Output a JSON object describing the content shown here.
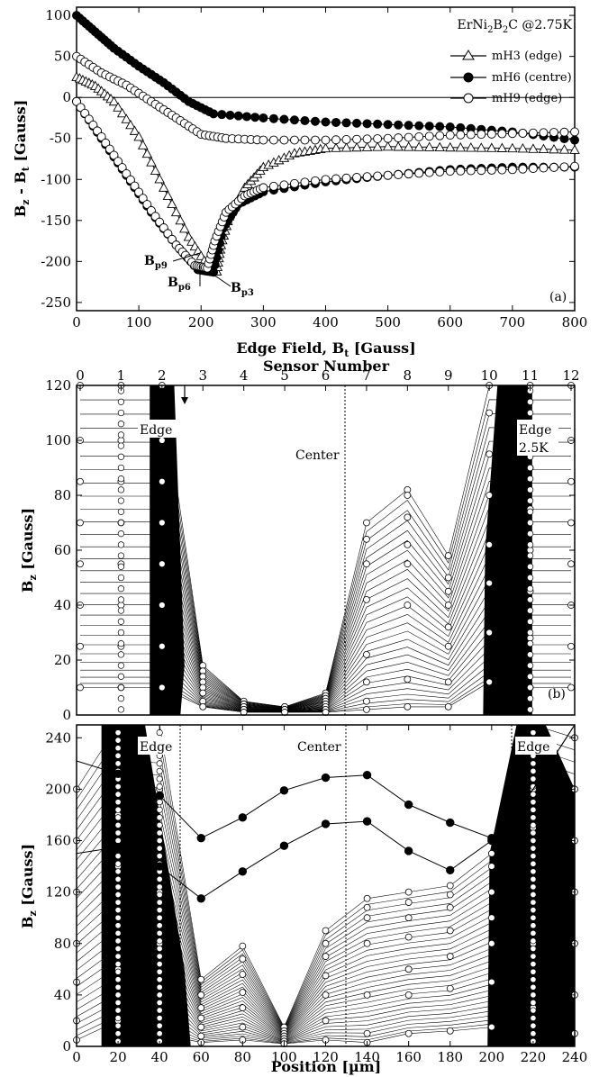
{
  "chart_data": [
    {
      "panel": "(a)",
      "type": "scatter",
      "xlabel": "Edge Field, B_t [Gauss]",
      "ylabel": "B_z - B_t [Gauss]",
      "xlim": [
        0,
        800
      ],
      "ylim": [
        -260,
        110
      ],
      "xticks": [
        0,
        100,
        200,
        300,
        400,
        500,
        600,
        700,
        800
      ],
      "yticks": [
        -250,
        -200,
        -150,
        -100,
        -50,
        0,
        50,
        100
      ],
      "legend_title": "ErNi2B2C @2.75K",
      "legend_placement": "top-right",
      "series": [
        {
          "name": "mH3 (edge)",
          "marker": "triangle",
          "up": [
            [
              0,
              25
            ],
            [
              30,
              14
            ],
            [
              60,
              -5
            ],
            [
              100,
              -48
            ],
            [
              140,
              -110
            ],
            [
              180,
              -170
            ],
            [
              210,
              -205
            ],
            [
              225,
              -212
            ]
          ],
          "down": [
            [
              225,
              -212
            ],
            [
              232,
              -180
            ],
            [
              245,
              -145
            ],
            [
              270,
              -110
            ],
            [
              300,
              -85
            ],
            [
              350,
              -68
            ],
            [
              400,
              -62
            ],
            [
              500,
              -60
            ],
            [
              600,
              -61
            ],
            [
              700,
              -62
            ],
            [
              800,
              -64
            ]
          ]
        },
        {
          "name": "mH6 (centre)",
          "marker": "filled-circle",
          "up": [
            [
              0,
              100
            ],
            [
              30,
              80
            ],
            [
              60,
              60
            ],
            [
              100,
              38
            ],
            [
              140,
              18
            ],
            [
              180,
              -5
            ],
            [
              220,
              -20
            ],
            [
              300,
              -25
            ],
            [
              400,
              -30
            ],
            [
              500,
              -33
            ],
            [
              600,
              -36
            ],
            [
              700,
              -42
            ],
            [
              800,
              -52
            ]
          ],
          "down": [
            [
              0,
              -5
            ],
            [
              40,
              -50
            ],
            [
              80,
              -95
            ],
            [
              120,
              -140
            ],
            [
              160,
              -180
            ],
            [
              195,
              -210
            ],
            [
              220,
              -213
            ],
            [
              235,
              -160
            ],
            [
              260,
              -130
            ],
            [
              300,
              -115
            ],
            [
              400,
              -103
            ],
            [
              500,
              -95
            ],
            [
              600,
              -88
            ],
            [
              700,
              -85
            ],
            [
              800,
              -85
            ]
          ]
        },
        {
          "name": "mH9 (edge)",
          "marker": "open-circle",
          "up": [
            [
              0,
              50
            ],
            [
              40,
              30
            ],
            [
              80,
              15
            ],
            [
              120,
              -5
            ],
            [
              160,
              -25
            ],
            [
              200,
              -45
            ],
            [
              240,
              -50
            ],
            [
              300,
              -52
            ],
            [
              400,
              -52
            ],
            [
              500,
              -50
            ],
            [
              600,
              -46
            ],
            [
              700,
              -44
            ],
            [
              800,
              -42
            ]
          ],
          "down": [
            [
              0,
              -5
            ],
            [
              40,
              -48
            ],
            [
              80,
              -93
            ],
            [
              120,
              -138
            ],
            [
              160,
              -180
            ],
            [
              190,
              -205
            ],
            [
              210,
              -208
            ],
            [
              222,
              -175
            ],
            [
              240,
              -140
            ],
            [
              270,
              -120
            ],
            [
              300,
              -110
            ],
            [
              400,
              -100
            ],
            [
              500,
              -95
            ],
            [
              600,
              -90
            ],
            [
              700,
              -88
            ],
            [
              800,
              -84
            ]
          ]
        }
      ],
      "annotations": {
        "bp9": "Bp9",
        "bp6": "Bp6",
        "bp3": "Bp3"
      }
    },
    {
      "panel": "(b)",
      "type": "line",
      "top_axis_label": "Sensor Number",
      "top_ticks": [
        "0",
        "1",
        "2",
        "3",
        "4",
        "5",
        "6",
        "7",
        "8",
        "9",
        "10",
        "11",
        "12"
      ],
      "ylabel": "B_z [Gauss]",
      "ylim": [
        0,
        120
      ],
      "yticks": [
        0,
        20,
        40,
        60,
        80,
        100,
        120
      ],
      "annotations": {
        "edge_left": "Edge",
        "center": "Center",
        "edge_right": "Edge",
        "temp": "2.5K"
      },
      "profiles": [
        [
          120,
          120,
          120,
          18,
          5,
          3,
          8,
          70,
          82,
          58,
          120,
          120,
          120
        ],
        [
          100,
          100,
          100,
          16,
          4,
          3,
          7,
          64,
          80,
          50,
          110,
          105,
          100
        ],
        [
          85,
          85,
          85,
          14,
          4,
          3,
          6,
          55,
          72,
          45,
          95,
          90,
          85
        ],
        [
          70,
          70,
          70,
          12,
          3,
          2,
          5,
          42,
          62,
          40,
          80,
          75,
          70
        ],
        [
          55,
          55,
          55,
          10,
          3,
          2,
          4,
          22,
          55,
          32,
          62,
          60,
          55
        ],
        [
          40,
          40,
          40,
          8,
          2,
          2,
          3,
          12,
          40,
          25,
          48,
          45,
          40
        ],
        [
          25,
          25,
          25,
          5,
          2,
          2,
          2,
          5,
          13,
          12,
          30,
          28,
          25
        ],
        [
          10,
          10,
          10,
          3,
          1,
          1,
          1,
          2,
          3,
          3,
          12,
          10,
          10
        ]
      ]
    },
    {
      "panel": "(c)",
      "type": "line",
      "xlabel": "Position [µm]",
      "ylabel": "B_z [Gauss]",
      "xlim": [
        0,
        240
      ],
      "ylim": [
        0,
        250
      ],
      "xticks": [
        0,
        20,
        40,
        60,
        80,
        100,
        120,
        140,
        160,
        180,
        200,
        220,
        240
      ],
      "yticks": [
        0,
        40,
        80,
        120,
        160,
        200,
        240
      ],
      "annotations": {
        "edge_left": "Edge",
        "center": "Center",
        "edge_right": "Edge"
      },
      "x": [
        0,
        20,
        40,
        60,
        80,
        100,
        120,
        140,
        160,
        180,
        200,
        220,
        240
      ],
      "filled_profiles": [
        [
          222,
          212,
          195,
          162,
          178,
          199,
          209,
          211,
          188,
          174,
          162,
          200,
          250
        ],
        [
          150,
          155,
          140,
          115,
          136,
          156,
          173,
          175,
          152,
          137,
          160,
          200,
          250
        ]
      ],
      "open_profiles": [
        [
          200,
          250,
          250,
          52,
          78,
          15,
          90,
          115,
          120,
          125,
          150,
          250,
          240
        ],
        [
          160,
          220,
          200,
          40,
          68,
          12,
          80,
          108,
          112,
          118,
          140,
          230,
          200
        ],
        [
          120,
          180,
          160,
          30,
          56,
          10,
          70,
          100,
          100,
          108,
          120,
          200,
          160
        ],
        [
          80,
          140,
          120,
          22,
          42,
          8,
          55,
          80,
          85,
          90,
          100,
          170,
          120
        ],
        [
          50,
          100,
          80,
          15,
          30,
          6,
          40,
          40,
          60,
          70,
          80,
          130,
          80
        ],
        [
          20,
          60,
          40,
          8,
          15,
          4,
          20,
          10,
          40,
          45,
          50,
          80,
          40
        ],
        [
          5,
          20,
          10,
          3,
          5,
          2,
          5,
          3,
          10,
          12,
          15,
          30,
          10
        ]
      ]
    }
  ],
  "text": {
    "a_xlabel": "Edge Field, B",
    "a_xlabel_sub": "t",
    "a_xlabel_unit": " [Gauss]",
    "legend_title": "ErNi2B2C @2.75K",
    "legend_mh3": "mH3 (edge)",
    "legend_mh6": "mH6 (centre)",
    "legend_mh9": "mH9 (edge)",
    "panel_a": "(a)",
    "panel_b": "(b)",
    "panel_c": "(c)",
    "sensor_number": "Sensor Number",
    "edge": "Edge",
    "center": "Center",
    "temp_b": "2.5K",
    "position": "Position [µm]"
  }
}
